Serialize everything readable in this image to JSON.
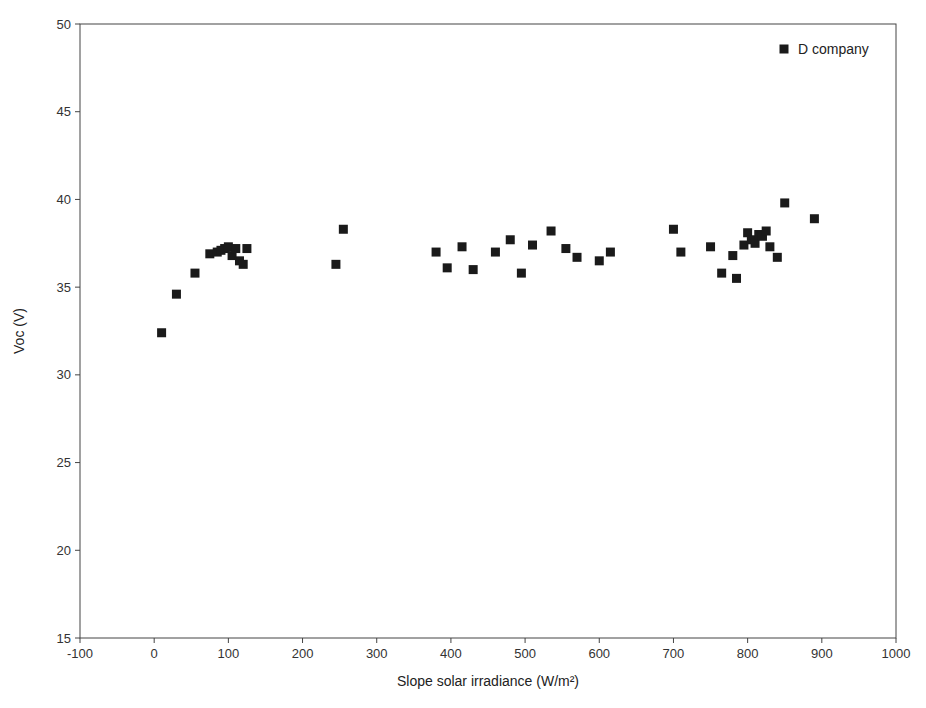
{
  "chart_data": {
    "type": "scatter",
    "xlabel": "Slope solar irradiance (W/m²)",
    "ylabel": "Voc (V)",
    "x": [
      10,
      30,
      55,
      75,
      85,
      90,
      95,
      100,
      105,
      110,
      115,
      120,
      125,
      245,
      255,
      380,
      395,
      415,
      430,
      460,
      480,
      495,
      510,
      535,
      555,
      570,
      600,
      615,
      700,
      710,
      750,
      765,
      780,
      785,
      795,
      800,
      805,
      810,
      815,
      820,
      825,
      830,
      840,
      850,
      890
    ],
    "series": [
      {
        "name": "D company",
        "color": "#1a1a1a",
        "marker": "square",
        "values": [
          32.4,
          34.6,
          35.8,
          36.9,
          37.0,
          37.1,
          37.2,
          37.3,
          36.8,
          37.2,
          36.5,
          36.3,
          37.2,
          36.3,
          38.3,
          37.0,
          36.1,
          37.3,
          36.0,
          37.0,
          37.7,
          35.8,
          37.4,
          38.2,
          37.2,
          36.7,
          36.5,
          37.0,
          38.3,
          37.0,
          37.3,
          35.8,
          36.8,
          35.5,
          37.4,
          38.1,
          37.7,
          37.5,
          38.0,
          37.9,
          38.2,
          37.3,
          36.7,
          39.8,
          38.9
        ]
      }
    ],
    "xlim": [
      -100,
      1000
    ],
    "ylim": [
      15,
      50
    ],
    "xticks": [
      -100,
      0,
      100,
      200,
      300,
      400,
      500,
      600,
      700,
      800,
      900,
      1000
    ],
    "yticks": [
      15,
      20,
      25,
      30,
      35,
      40,
      45,
      50
    ],
    "grid": false,
    "legend": "upper right"
  }
}
